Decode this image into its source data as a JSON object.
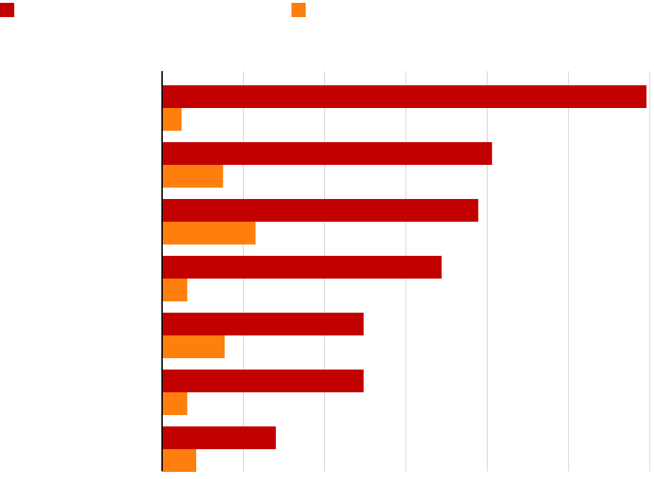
{
  "chart_data": {
    "type": "bar",
    "orientation": "horizontal",
    "categories": [
      "",
      "",
      "",
      "",
      "",
      "",
      ""
    ],
    "series": [
      {
        "color": "#c30000",
        "values": [
          5.96,
          4.06,
          3.89,
          3.44,
          2.48,
          2.48,
          1.4
        ]
      },
      {
        "color": "#ff7f0e",
        "values": [
          0.24,
          0.75,
          1.15,
          0.31,
          0.77,
          0.31,
          0.42
        ]
      }
    ],
    "xlim": [
      0,
      6
    ],
    "x_gridlines": [
      1,
      2,
      3,
      4,
      5,
      6
    ],
    "grid": true,
    "legend_position": "top"
  }
}
